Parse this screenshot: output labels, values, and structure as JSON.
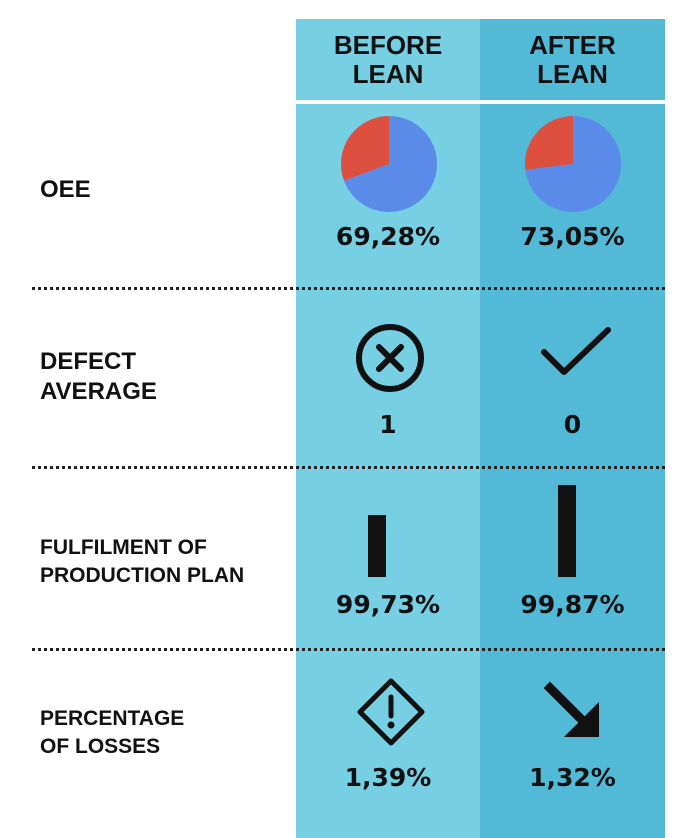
{
  "columns": {
    "before": {
      "line1": "BEFORE",
      "line2": "LEAN"
    },
    "after": {
      "line1": "AFTER",
      "line2": "LEAN"
    }
  },
  "rows": [
    {
      "label_lines": [
        "OEE"
      ],
      "before": "69,28%",
      "after": "73,05%",
      "before_icon": "pie-chart-icon",
      "after_icon": "pie-chart-icon"
    },
    {
      "label_lines": [
        "DEFECT",
        "AVERAGE"
      ],
      "before": "1",
      "after": "0",
      "before_icon": "x-circle-icon",
      "after_icon": "checkmark-icon"
    },
    {
      "label_lines": [
        "FULFILMENT OF",
        "PRODUCTION PLAN"
      ],
      "before": "99,73%",
      "after": "99,87%",
      "before_icon": "bar-icon",
      "after_icon": "bar-icon"
    },
    {
      "label_lines": [
        "PERCENTAGE",
        "OF LOSSES"
      ],
      "before": "1,39%",
      "after": "1,32%",
      "before_icon": "warning-diamond-icon",
      "after_icon": "arrow-down-right-icon"
    }
  ],
  "chart_data": {
    "type": "pie",
    "series": [
      {
        "name": "BEFORE LEAN",
        "values": [
          69.28,
          30.72
        ]
      },
      {
        "name": "AFTER LEAN",
        "values": [
          73.05,
          26.95
        ]
      }
    ]
  },
  "colors": {
    "before_column": "#76cfe3",
    "after_column": "#52b9d7",
    "pie_main": "#5b8be8",
    "pie_rest": "#dd5040",
    "text": "#111111"
  }
}
